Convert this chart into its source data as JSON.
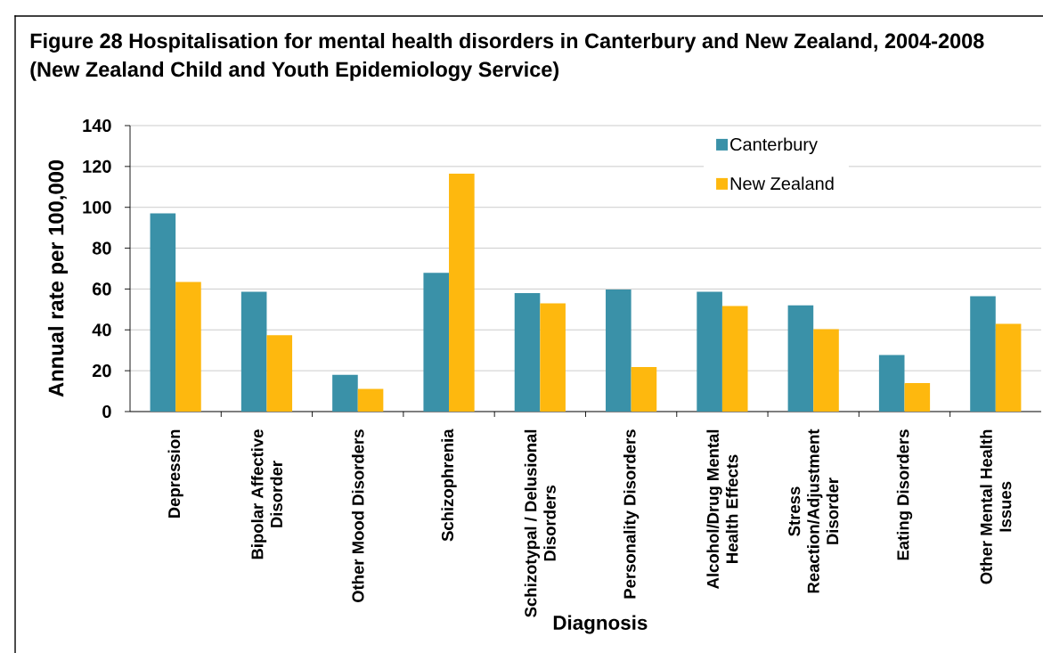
{
  "chart_data": {
    "type": "bar",
    "title": "Figure 28 Hospitalisation for mental health disorders in Canterbury and New Zealand, 2004-2008",
    "subtitle": "(New Zealand Child and Youth Epidemiology Service)",
    "xlabel": "Diagnosis",
    "ylabel": "Annual rate per 100,000",
    "categories": [
      "Depression",
      "Bipolar Affective Disorder",
      "Other Mood Disorders",
      "Schizophrenia",
      "Schizotypal / Delusional Disorders",
      "Personality Disorders",
      "Alcohol/Drug Mental Health Effects",
      "Stress Reaction/Adjustment Disorder",
      "Eating Disorders",
      "Other Mental Health Issues"
    ],
    "series": [
      {
        "name": "Canterbury",
        "color": "#3a91a8",
        "values": [
          97,
          58.7,
          18,
          67.9,
          58,
          59.8,
          58.7,
          52,
          27.7,
          56.5
        ]
      },
      {
        "name": "New Zealand",
        "color": "#feb80e",
        "values": [
          63.5,
          37.4,
          11.1,
          116.5,
          53,
          21.8,
          51.7,
          40.3,
          13.9,
          43
        ]
      }
    ],
    "ylim": [
      0,
      140
    ],
    "yticks": [
      0,
      20,
      40,
      60,
      80,
      100,
      120,
      140
    ],
    "grid": "y",
    "legend": "top right"
  }
}
